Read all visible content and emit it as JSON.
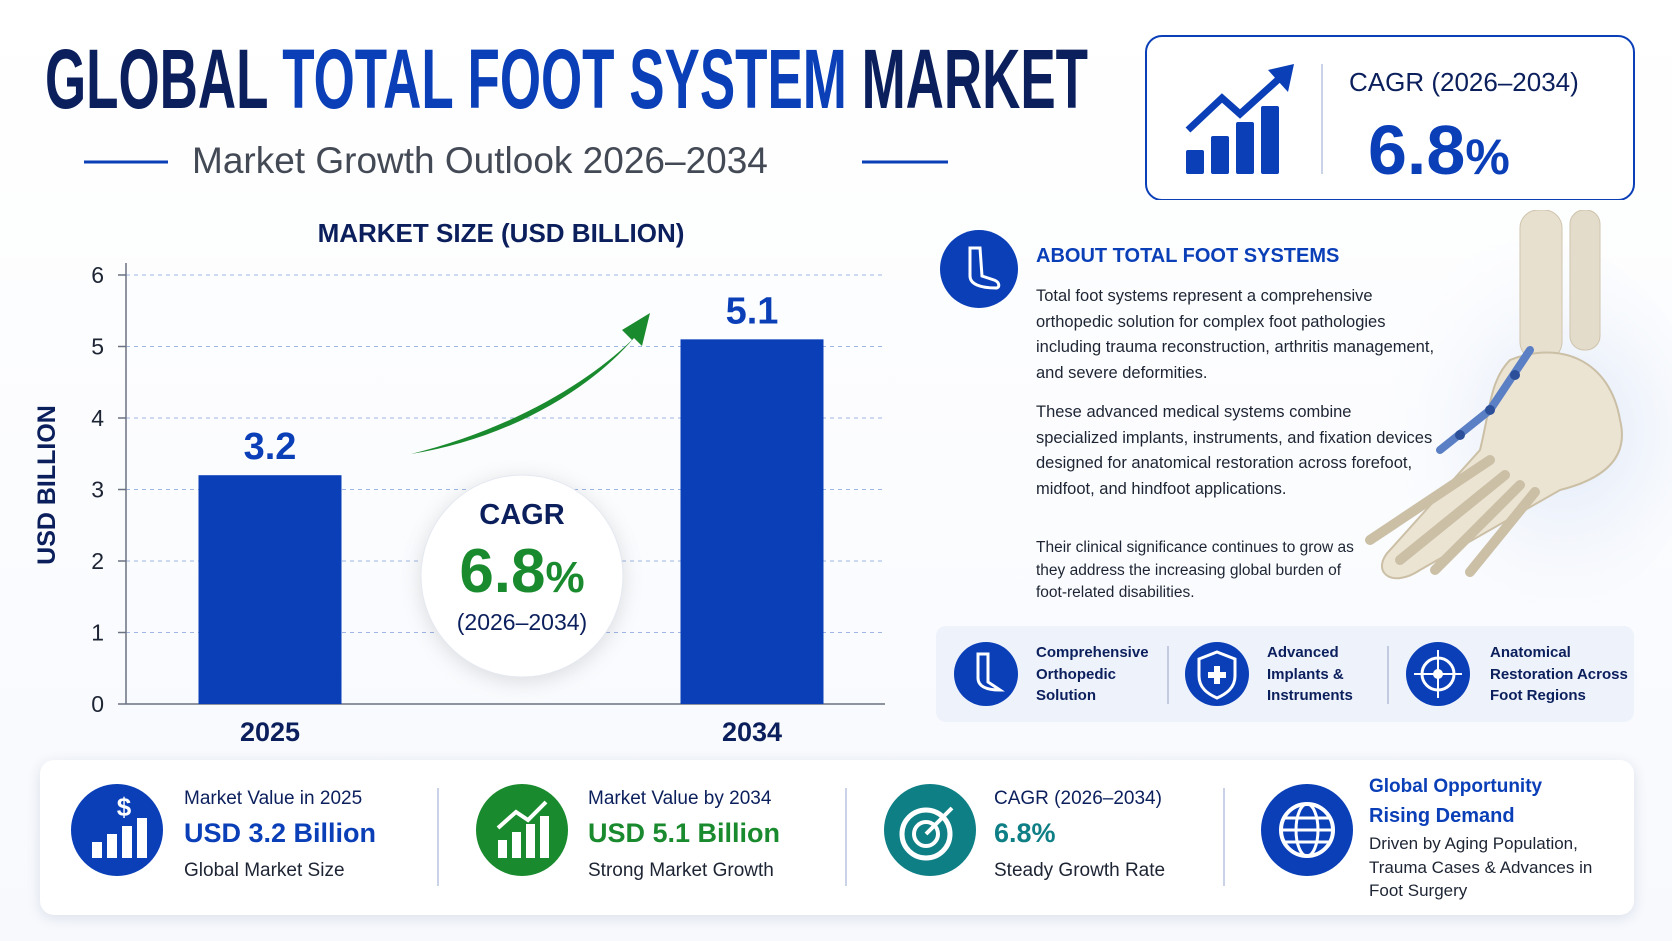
{
  "header": {
    "title_parts": [
      "GLOBAL",
      "TOTAL FOOT SYSTEM",
      "MARKET"
    ],
    "subtitle": "Market Growth Outlook 2026–2034"
  },
  "cagr_box": {
    "label": "CAGR (2026–2034)",
    "number": "6.8",
    "unit": "%"
  },
  "chart_data": {
    "type": "bar",
    "title": "MARKET SIZE (USD BILLION)",
    "y_label": "USD BILLION",
    "categories": [
      "2025",
      "2034"
    ],
    "values": [
      3.2,
      5.1
    ],
    "color": "#0a3fb8",
    "ylim": [
      0,
      6
    ],
    "yticks": [
      0,
      1,
      2,
      3,
      4,
      5,
      6
    ],
    "grid": true,
    "annotation": {
      "label": "CAGR",
      "number": "6.8",
      "unit": "%",
      "period": "(2026–2034)"
    }
  },
  "about": {
    "title": "ABOUT TOTAL FOOT SYSTEMS",
    "paragraphs": [
      "Total foot systems represent a comprehensive orthopedic solution for complex foot pathologies including trauma reconstruction, arthritis management, and severe deformities.",
      "These advanced medical systems combine specialized implants, instruments, and fixation devices designed for anatomical restoration across forefoot, midfoot, and hindfoot applications.",
      "Their clinical significance continues to grow as they address the increasing global burden of foot-related disabilities."
    ]
  },
  "features": [
    "Comprehensive Orthopedic Solution",
    "Advanced Implants & Instruments",
    "Anatomical Restoration Across Foot Regions"
  ],
  "stats": [
    {
      "label": "Market Value in 2025",
      "value": "USD 3.2 Billion",
      "sub": "Global Market Size"
    },
    {
      "label": "Market Value by 2034",
      "value": "USD 5.1 Billion",
      "sub": "Strong Market Growth"
    },
    {
      "label": "CAGR (2026–2034)",
      "value": "6.8%",
      "sub": "Steady Growth Rate"
    },
    {
      "label": "Global Opportunity",
      "value": "Rising Demand",
      "sub": "Driven by Aging Population, Trauma Cases & Advances in Foot Surgery"
    }
  ]
}
